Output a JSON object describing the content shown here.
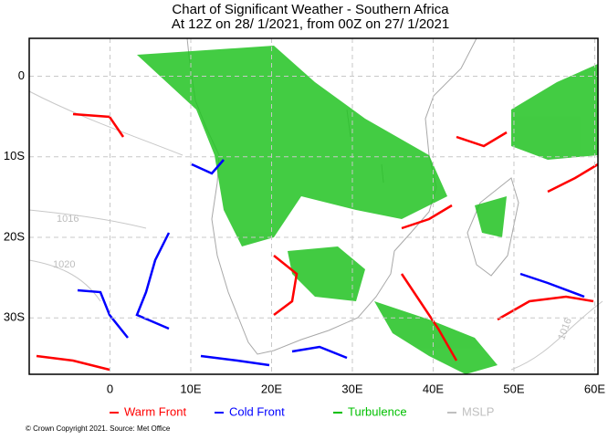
{
  "chart_data": {
    "type": "map",
    "title_lines": [
      "Chart of Significant Weather - Southern Africa",
      "At 12Z on 28/ 1/2021, from 00Z on 27/ 1/2021"
    ],
    "xlim": [
      -10,
      60.4
    ],
    "ylim": [
      -37,
      4.7
    ],
    "xticks": [
      0,
      {
        "value": 10,
        "label": "10E"
      },
      {
        "value": 20,
        "label": "20E"
      },
      {
        "value": 30,
        "label": "30E"
      },
      {
        "value": 40,
        "label": "40E"
      },
      {
        "value": 50,
        "label": "50E"
      },
      {
        "value": 60,
        "label": "60E"
      }
    ],
    "yticks": [
      0,
      {
        "value": -10,
        "label": "10S"
      },
      {
        "value": -20,
        "label": "20S"
      },
      {
        "value": -30,
        "label": "30S"
      }
    ],
    "grid": true,
    "legend": [
      {
        "name": "Warm Front",
        "color": "#ff0000"
      },
      {
        "name": "Cold Front",
        "color": "#0000ff"
      },
      {
        "name": "Turbulence",
        "color": "#00c000"
      },
      {
        "name": "MSLP",
        "color": "#c0c0c0"
      }
    ],
    "isobar_labels": [
      "1016",
      "1020",
      "1016"
    ],
    "copyright": "© Crown Copyright 2021. Source: Met Office"
  }
}
